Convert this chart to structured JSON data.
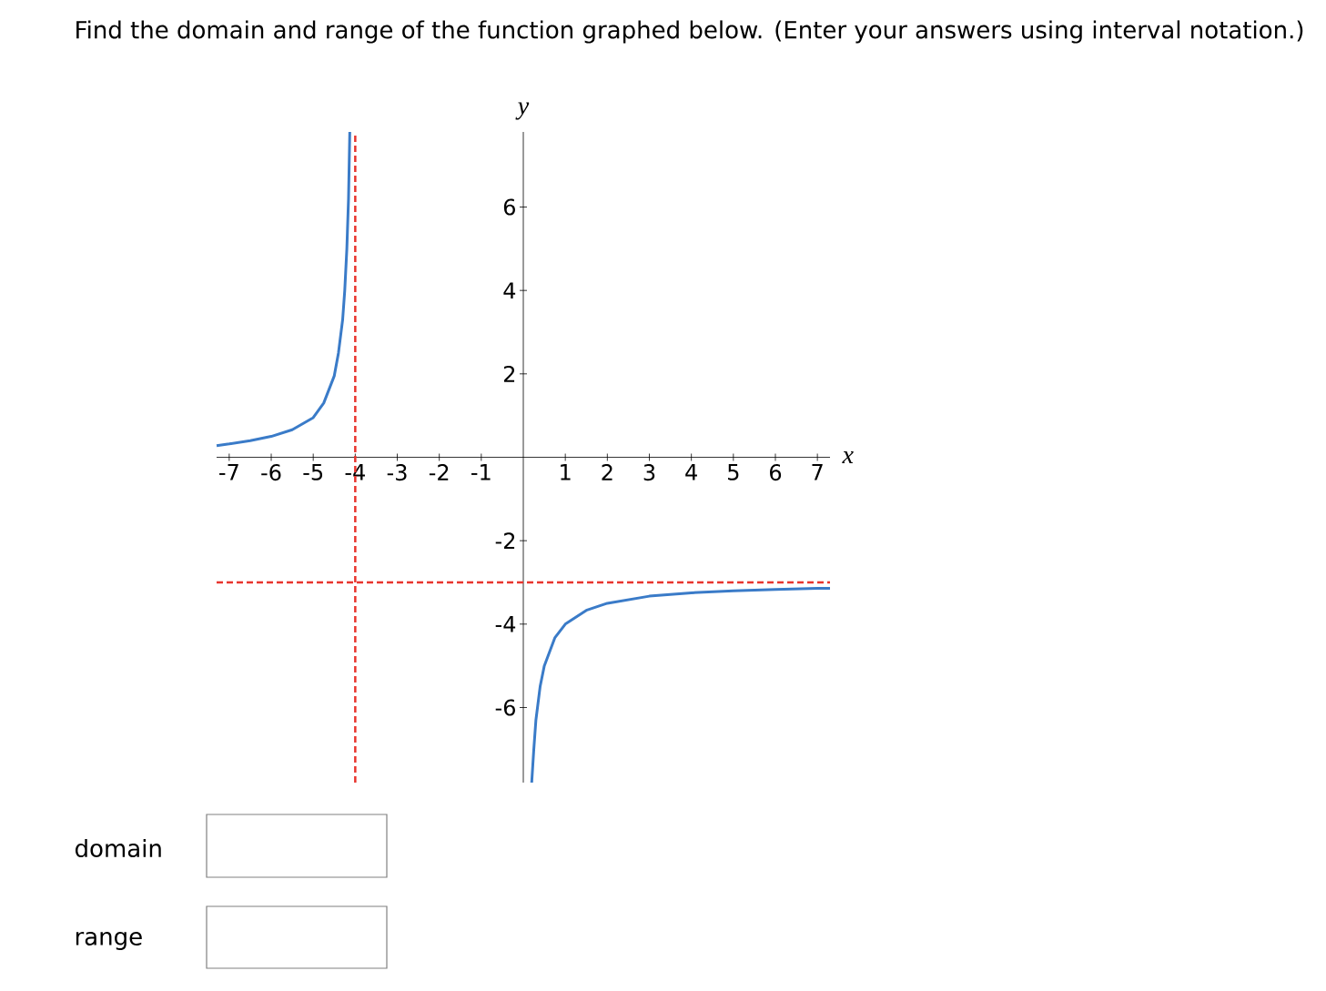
{
  "chart_data": {
    "type": "line",
    "title": "Find the domain and range of the function graphed below. (Enter your answers using interval notation.)",
    "xlabel": "x",
    "ylabel": "y",
    "xlim": [
      -7.3,
      7.3
    ],
    "ylim": [
      -7.8,
      7.8
    ],
    "xticks": [
      -7,
      -6,
      -5,
      -4,
      -3,
      -2,
      -1,
      1,
      2,
      3,
      4,
      5,
      6,
      7
    ],
    "yticks": [
      -6,
      -4,
      -2,
      2,
      4,
      6
    ],
    "marker": "none",
    "line_style": "solid",
    "series": [
      {
        "color": "#3a7bc8",
        "x": [
          -7.3,
          -7,
          -6.5,
          -6,
          -5.5,
          -5,
          -4.75,
          -4.5,
          -4.4,
          -4.3,
          -4.25,
          -4.2,
          -4.16,
          -4.13
        ],
        "values": [
          0.28,
          0.32,
          0.4,
          0.5,
          0.66,
          0.95,
          1.3,
          1.95,
          2.5,
          3.3,
          4,
          5,
          6.2,
          7.8
        ]
      },
      {
        "color": "#3a7bc8",
        "x": [
          0.2,
          0.25,
          0.3,
          0.4,
          0.5,
          0.75,
          1,
          1.5,
          2,
          3,
          4,
          5,
          6,
          7,
          7.3
        ],
        "values": [
          -7.8,
          -7,
          -6.3,
          -5.5,
          -5,
          -4.33,
          -4,
          -3.67,
          -3.5,
          -3.33,
          -3.25,
          -3.2,
          -3.17,
          -3.14,
          -3.14
        ]
      }
    ],
    "ref_lines": [
      {
        "axis": "x",
        "value": -4,
        "color": "#e8352e",
        "line_style": "dashed"
      },
      {
        "axis": "y",
        "value": -3,
        "color": "#e8352e",
        "line_style": "dashed"
      }
    ],
    "annotations": [
      "domain",
      "range"
    ]
  }
}
